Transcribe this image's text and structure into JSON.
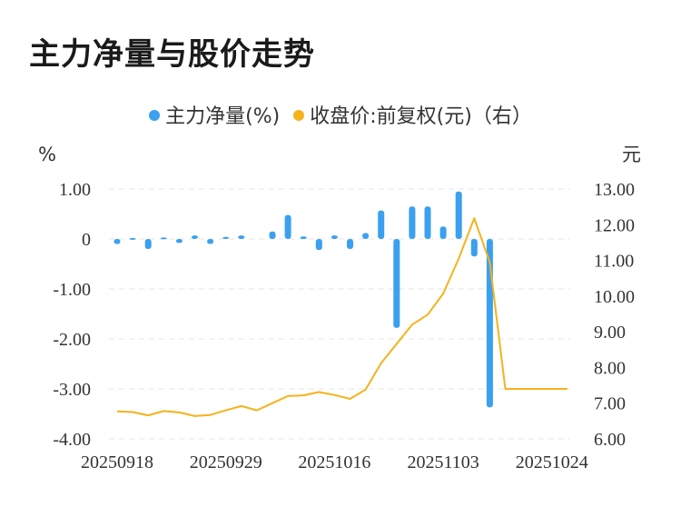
{
  "title": "主力净量与股价走势",
  "chart_data": {
    "type": "bar+line",
    "legend": [
      {
        "label": "主力净量(%)",
        "color": "#3aa0ef"
      },
      {
        "label": "收盘价:前复权(元)（右）",
        "color": "#f5b21b"
      }
    ],
    "left_unit": "%",
    "right_unit": "元",
    "left_ticks": [
      "1.00",
      "0",
      "-1.00",
      "-2.00",
      "-3.00",
      "-4.00"
    ],
    "left_tick_values": [
      1,
      0,
      -1,
      -2,
      -3,
      -4
    ],
    "right_ticks": [
      "13.00",
      "12.00",
      "11.00",
      "10.00",
      "9.00",
      "8.00",
      "7.00",
      "6.00"
    ],
    "right_tick_values": [
      13,
      12,
      11,
      10,
      9,
      8,
      7,
      6
    ],
    "ylim_left": [
      -4,
      1
    ],
    "ylim_right": [
      6,
      13
    ],
    "x_tick_labels": [
      "20250918",
      "20250929",
      "20251016",
      "20251103",
      "20251024"
    ],
    "x_tick_indices": [
      0,
      7,
      14,
      21,
      28
    ],
    "bar_series": {
      "name": "主力净量(%)",
      "values": [
        -0.1,
        0.02,
        -0.2,
        0.03,
        -0.08,
        0.07,
        -0.1,
        0.04,
        0.07,
        0.0,
        0.15,
        0.48,
        0.05,
        -0.22,
        0.07,
        -0.2,
        0.12,
        0.57,
        -1.78,
        0.65,
        0.65,
        0.25,
        0.95,
        -0.35,
        -3.37,
        0,
        0,
        0,
        0,
        0
      ]
    },
    "line_series": {
      "name": "收盘价:前复权(元)（右）",
      "values": [
        6.77,
        6.75,
        6.66,
        6.78,
        6.74,
        6.64,
        6.67,
        6.8,
        6.92,
        6.8,
        7.0,
        7.2,
        7.22,
        7.31,
        7.23,
        7.12,
        7.38,
        8.12,
        8.66,
        9.2,
        9.48,
        10.07,
        11.05,
        12.18,
        10.95,
        7.4,
        7.4,
        7.4,
        7.4,
        7.4
      ]
    },
    "grid": true
  }
}
